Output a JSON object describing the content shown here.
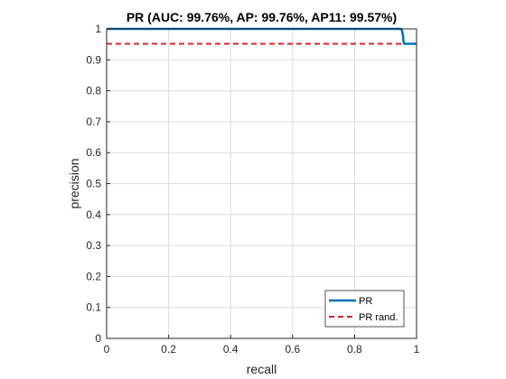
{
  "chart_data": {
    "type": "line",
    "title": "PR (AUC: 99.76%, AP: 99.76%, AP11: 99.57%)",
    "xlabel": "recall",
    "ylabel": "precision",
    "xlim": [
      0,
      1
    ],
    "ylim": [
      0,
      1
    ],
    "x_ticks": [
      "0",
      "0.2",
      "0.4",
      "0.6",
      "0.8",
      "1"
    ],
    "y_ticks": [
      "0",
      "0.1",
      "0.2",
      "0.3",
      "0.4",
      "0.5",
      "0.6",
      "0.7",
      "0.8",
      "0.9",
      "1"
    ],
    "grid": true,
    "legend_position": "bottom-right",
    "series": [
      {
        "name": "PR",
        "color": "#0072BD",
        "style": "solid",
        "x": [
          0,
          0.95,
          0.953,
          0.956,
          0.958,
          0.96,
          1.0
        ],
        "y": [
          1.0,
          1.0,
          0.995,
          0.98,
          0.96,
          0.952,
          0.952
        ]
      },
      {
        "name": "PR rand.",
        "color": "#D62728",
        "style": "dashed",
        "x": [
          0,
          1
        ],
        "y": [
          0.952,
          0.952
        ]
      }
    ]
  }
}
